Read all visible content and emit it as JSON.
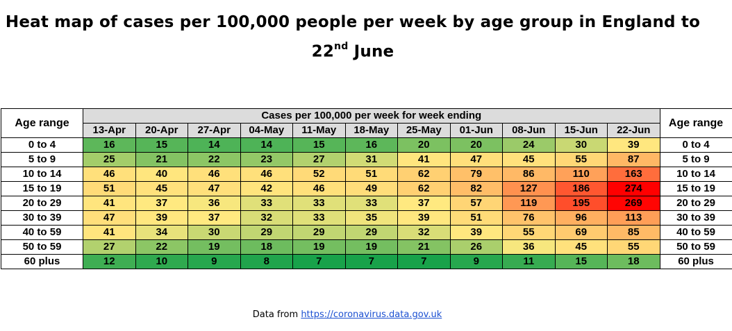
{
  "title_main": "Heat map of cases per 100,000 people per week by age group in England to 22",
  "title_sup": "nd",
  "title_end": " June",
  "chart_data": {
    "type": "heatmap",
    "title": "Heat map of cases per 100,000 people per week by age group in England to 22nd June",
    "row_header": "Age range",
    "column_group_header": "Cases per 100,000 per week for week ending",
    "columns": [
      "13-Apr",
      "20-Apr",
      "27-Apr",
      "04-May",
      "11-May",
      "18-May",
      "25-May",
      "01-Jun",
      "08-Jun",
      "15-Jun",
      "22-Jun"
    ],
    "rows": [
      "0 to 4",
      "5 to 9",
      "10 to 14",
      "15 to 19",
      "20 to 29",
      "30 to 39",
      "40 to 59",
      "50 to 59",
      "60 plus"
    ],
    "values": [
      [
        16,
        15,
        14,
        14,
        15,
        16,
        20,
        20,
        24,
        30,
        39
      ],
      [
        25,
        21,
        22,
        23,
        27,
        31,
        41,
        47,
        45,
        55,
        87
      ],
      [
        46,
        40,
        46,
        46,
        52,
        51,
        62,
        79,
        86,
        110,
        163
      ],
      [
        51,
        45,
        47,
        42,
        46,
        49,
        62,
        82,
        127,
        186,
        274
      ],
      [
        41,
        37,
        36,
        33,
        33,
        33,
        37,
        57,
        119,
        195,
        269
      ],
      [
        47,
        39,
        37,
        32,
        33,
        35,
        39,
        51,
        76,
        96,
        113
      ],
      [
        41,
        34,
        30,
        29,
        29,
        29,
        32,
        39,
        55,
        69,
        85
      ],
      [
        27,
        22,
        19,
        18,
        19,
        19,
        21,
        26,
        36,
        45,
        55
      ],
      [
        12,
        10,
        9,
        8,
        7,
        7,
        7,
        9,
        11,
        15,
        18
      ]
    ],
    "color_scale": {
      "low": "#18a24a",
      "mid": "#ffe980",
      "high": "#ff0000"
    }
  },
  "source": {
    "prefix": "Data from ",
    "link": "https://coronavirus.data.gov.uk"
  }
}
